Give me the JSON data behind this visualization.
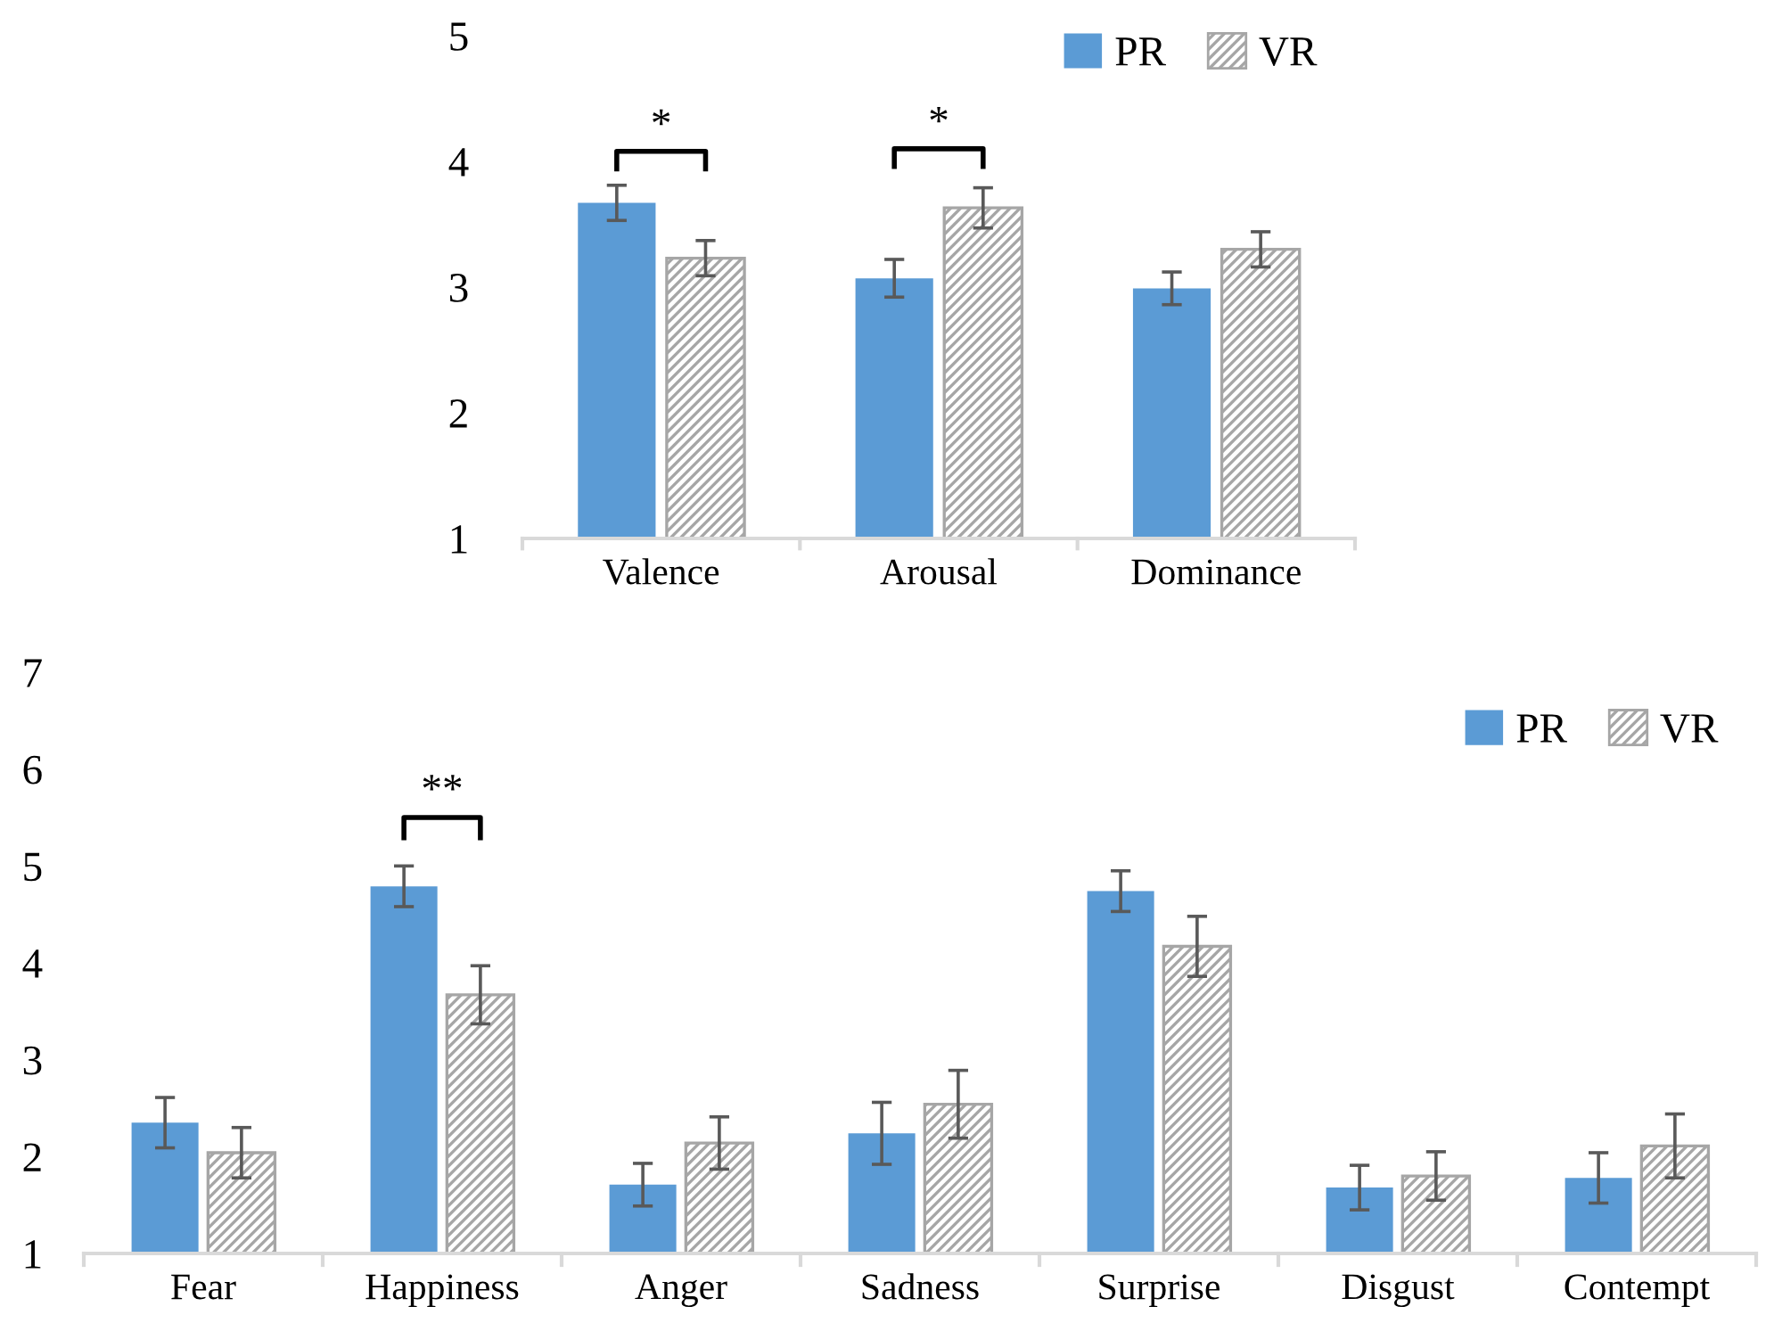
{
  "chart_data": [
    {
      "type": "bar",
      "categories": [
        "Valence",
        "Arousal",
        "Dominance"
      ],
      "series": [
        {
          "name": "PR",
          "color": "#5b9bd5",
          "values": [
            3.67,
            3.07,
            2.99
          ],
          "errors": [
            0.14,
            0.15,
            0.13
          ]
        },
        {
          "name": "VR",
          "color": "#a6a6a6",
          "values": [
            3.23,
            3.63,
            3.3
          ],
          "errors": [
            0.14,
            0.16,
            0.14
          ]
        }
      ],
      "ylim": [
        1,
        5
      ],
      "yticks": [
        1,
        2,
        3,
        4,
        5
      ],
      "grid": false,
      "legend": "top right",
      "annotations": [
        "*",
        "*"
      ]
    },
    {
      "type": "bar",
      "categories": [
        "Fear",
        "Happiness",
        "Anger",
        "Sadness",
        "Surprise",
        "Disgust",
        "Contempt"
      ],
      "series": [
        {
          "name": "PR",
          "color": "#5b9bd5",
          "values": [
            2.35,
            4.79,
            1.71,
            2.24,
            4.74,
            1.68,
            1.78
          ],
          "errors": [
            0.26,
            0.21,
            0.22,
            0.32,
            0.21,
            0.23,
            0.26
          ]
        },
        {
          "name": "VR",
          "color": "#a6a6a6",
          "values": [
            2.04,
            3.67,
            2.14,
            2.54,
            4.17,
            1.8,
            2.11
          ],
          "errors": [
            0.26,
            0.3,
            0.27,
            0.35,
            0.31,
            0.25,
            0.33
          ]
        }
      ],
      "ylim": [
        1,
        7
      ],
      "yticks": [
        1,
        2,
        3,
        4,
        5,
        6,
        7
      ],
      "grid": false,
      "legend": "top right",
      "annotations": [
        "**"
      ]
    }
  ]
}
